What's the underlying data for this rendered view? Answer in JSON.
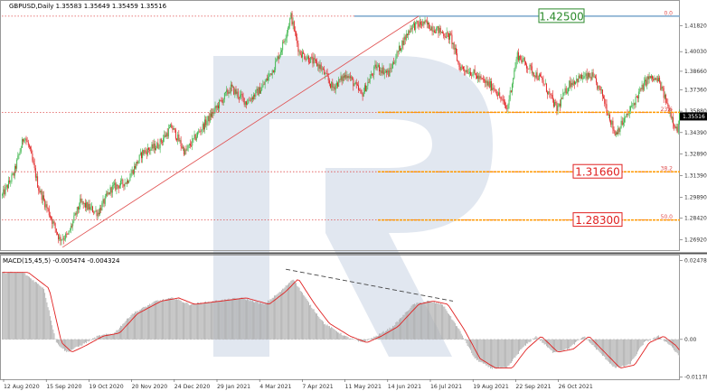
{
  "header": {
    "symbol_line": "GBPUSD,Daily  1.35583 1.35649 1.35459 1.35516",
    "macd_line": "MACD(15,45,5) -0.005474 -0.004324"
  },
  "colors": {
    "bull": "#3bb54a",
    "bear": "#e02020",
    "fib_line": "#e05050",
    "target": "#ff9900",
    "resistance": "#7aa6cc",
    "macd_hist": "#aaaaaa",
    "macd_signal": "#e02020",
    "watermark": "#c8d3e3",
    "label_green": "#2a8a2a",
    "label_red": "#e02020",
    "price_tag_bg": "#000000"
  },
  "chart_data": [
    {
      "type": "candlestick",
      "series_name": "GBPUSD,Daily",
      "ylim": [
        1.262,
        1.435
      ],
      "price_ticks": [
        "1.41820",
        "1.40030",
        "1.38660",
        "1.37360",
        "1.35880",
        "1.34390",
        "1.32890",
        "1.31390",
        "1.29890",
        "1.28420",
        "1.26920"
      ],
      "price_tick_values": [
        1.4182,
        1.4003,
        1.3866,
        1.3736,
        1.3588,
        1.3439,
        1.3289,
        1.3139,
        1.2989,
        1.2842,
        1.2692
      ],
      "current_price": "1.35516",
      "current_price_value": 1.35516,
      "fib_levels": [
        {
          "label": "0.0",
          "value": 1.425
        },
        {
          "label": "23.6",
          "value": 1.358
        },
        {
          "label": "38.2",
          "value": 1.3166
        },
        {
          "label": "50.0",
          "value": 1.283
        }
      ],
      "target_labels": [
        {
          "text": "1.42500",
          "value": 1.425,
          "color": "green"
        },
        {
          "text": "1.31660",
          "value": 1.3166,
          "color": "red"
        },
        {
          "text": "1.28300",
          "value": 1.283,
          "color": "red"
        }
      ],
      "trendline": {
        "from": {
          "bar": 58,
          "price": 1.264
        },
        "to": {
          "bar": 401,
          "price": 1.425
        }
      },
      "pivots": [
        [
          0,
          1.3
        ],
        [
          11,
          1.315
        ],
        [
          21,
          1.342
        ],
        [
          26,
          1.333
        ],
        [
          35,
          1.305
        ],
        [
          45,
          1.288
        ],
        [
          55,
          1.27
        ],
        [
          63,
          1.272
        ],
        [
          75,
          1.295
        ],
        [
          92,
          1.288
        ],
        [
          105,
          1.305
        ],
        [
          120,
          1.31
        ],
        [
          135,
          1.33
        ],
        [
          150,
          1.335
        ],
        [
          163,
          1.348
        ],
        [
          176,
          1.33
        ],
        [
          190,
          1.345
        ],
        [
          205,
          1.36
        ],
        [
          220,
          1.375
        ],
        [
          235,
          1.365
        ],
        [
          250,
          1.375
        ],
        [
          262,
          1.39
        ],
        [
          270,
          1.405
        ],
        [
          278,
          1.425
        ],
        [
          286,
          1.4
        ],
        [
          296,
          1.395
        ],
        [
          306,
          1.39
        ],
        [
          318,
          1.375
        ],
        [
          332,
          1.385
        ],
        [
          346,
          1.37
        ],
        [
          360,
          1.39
        ],
        [
          372,
          1.385
        ],
        [
          384,
          1.405
        ],
        [
          394,
          1.418
        ],
        [
          406,
          1.42
        ],
        [
          420,
          1.415
        ],
        [
          432,
          1.41
        ],
        [
          440,
          1.39
        ],
        [
          452,
          1.386
        ],
        [
          462,
          1.38
        ],
        [
          474,
          1.375
        ],
        [
          486,
          1.36
        ],
        [
          496,
          1.398
        ],
        [
          506,
          1.39
        ],
        [
          520,
          1.38
        ],
        [
          534,
          1.36
        ],
        [
          546,
          1.378
        ],
        [
          556,
          1.382
        ],
        [
          568,
          1.383
        ],
        [
          578,
          1.37
        ],
        [
          590,
          1.343
        ],
        [
          602,
          1.356
        ],
        [
          612,
          1.37
        ],
        [
          622,
          1.382
        ],
        [
          632,
          1.38
        ],
        [
          642,
          1.36
        ],
        [
          650,
          1.345
        ],
        [
          652,
          1.3552
        ]
      ],
      "xlabels": [
        "12 Aug 2020",
        "15 Sep 2020",
        "19 Oct 2020",
        "20 Nov 2020",
        "24 Dec 2020",
        "29 Jan 2021",
        "4 Mar 2021",
        "7 Apr 2021",
        "11 May 2021",
        "14 Jun 2021",
        "16 Jul 2021",
        "19 Aug 2021",
        "22 Sep 2021",
        "26 Oct 2021"
      ]
    },
    {
      "type": "bar",
      "series_name": "MACD(15,45,5)",
      "ylim": [
        -0.0125,
        0.026
      ],
      "ticks": [
        "0.024781",
        "0.00",
        "-0.011787"
      ],
      "tick_values": [
        0.024781,
        0,
        -0.011787
      ],
      "macd_value": "-0.005474",
      "signal_value": "-0.004324",
      "divergence_line": {
        "from": {
          "bar": 273,
          "value": 0.022
        },
        "to": {
          "bar": 434,
          "value": 0.012
        }
      },
      "pivots": [
        [
          0,
          0.021
        ],
        [
          20,
          0.021
        ],
        [
          40,
          0.016
        ],
        [
          52,
          -0.001
        ],
        [
          62,
          -0.004
        ],
        [
          75,
          -0.002
        ],
        [
          92,
          0.001
        ],
        [
          108,
          0.002
        ],
        [
          125,
          0.008
        ],
        [
          148,
          0.012
        ],
        [
          165,
          0.013
        ],
        [
          180,
          0.011
        ],
        [
          205,
          0.012
        ],
        [
          230,
          0.013
        ],
        [
          252,
          0.011
        ],
        [
          268,
          0.015
        ],
        [
          280,
          0.019
        ],
        [
          296,
          0.011
        ],
        [
          310,
          0.005
        ],
        [
          330,
          0.001
        ],
        [
          346,
          -0.001
        ],
        [
          360,
          0.001
        ],
        [
          376,
          0.004
        ],
        [
          396,
          0.011
        ],
        [
          410,
          0.012
        ],
        [
          424,
          0.011
        ],
        [
          440,
          0.003
        ],
        [
          455,
          -0.006
        ],
        [
          470,
          -0.009
        ],
        [
          486,
          -0.009
        ],
        [
          500,
          -0.003
        ],
        [
          514,
          0.001
        ],
        [
          530,
          -0.004
        ],
        [
          545,
          -0.003
        ],
        [
          560,
          0.001
        ],
        [
          575,
          -0.004
        ],
        [
          590,
          -0.009
        ],
        [
          604,
          -0.008
        ],
        [
          618,
          -0.001
        ],
        [
          632,
          0.001
        ],
        [
          644,
          -0.002
        ],
        [
          652,
          -0.0055
        ]
      ]
    }
  ]
}
